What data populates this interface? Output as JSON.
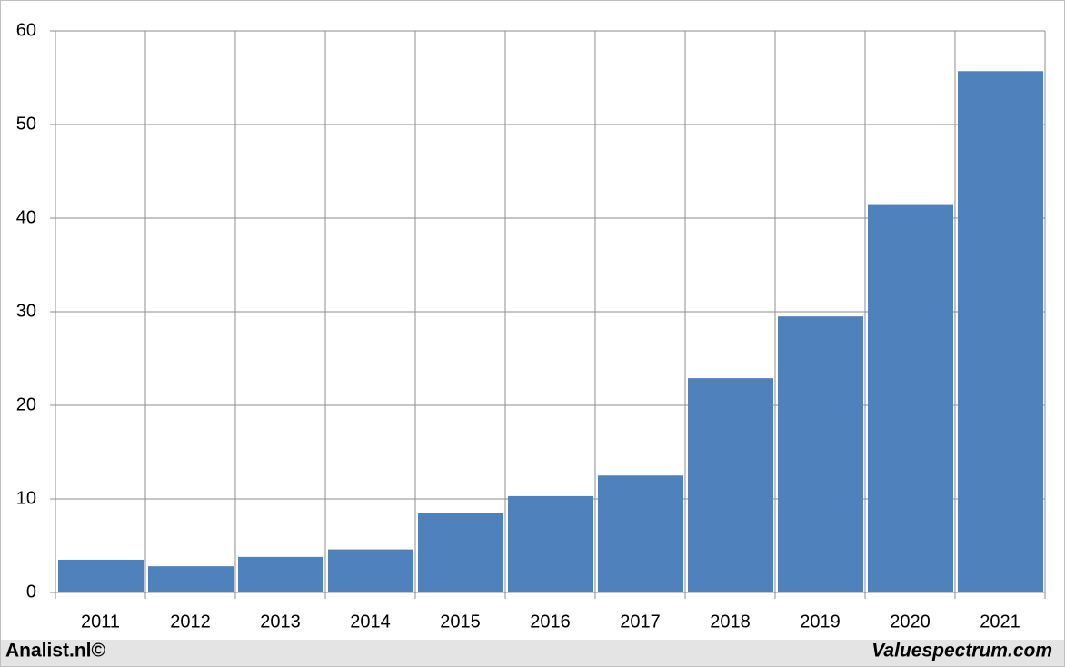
{
  "chart_data": {
    "type": "bar",
    "categories": [
      "2011",
      "2012",
      "2013",
      "2014",
      "2015",
      "2016",
      "2017",
      "2018",
      "2019",
      "2020",
      "2021"
    ],
    "values": [
      3.5,
      2.8,
      3.8,
      4.6,
      8.5,
      10.3,
      12.5,
      22.9,
      29.5,
      41.4,
      55.7
    ],
    "color": "#4f81bd",
    "ylim": [
      0,
      60
    ],
    "yticks": [
      0,
      10,
      20,
      30,
      40,
      50,
      60
    ],
    "grid": true,
    "footer_left": "Analist.nl©",
    "footer_right": "Valuespectrum.com"
  }
}
